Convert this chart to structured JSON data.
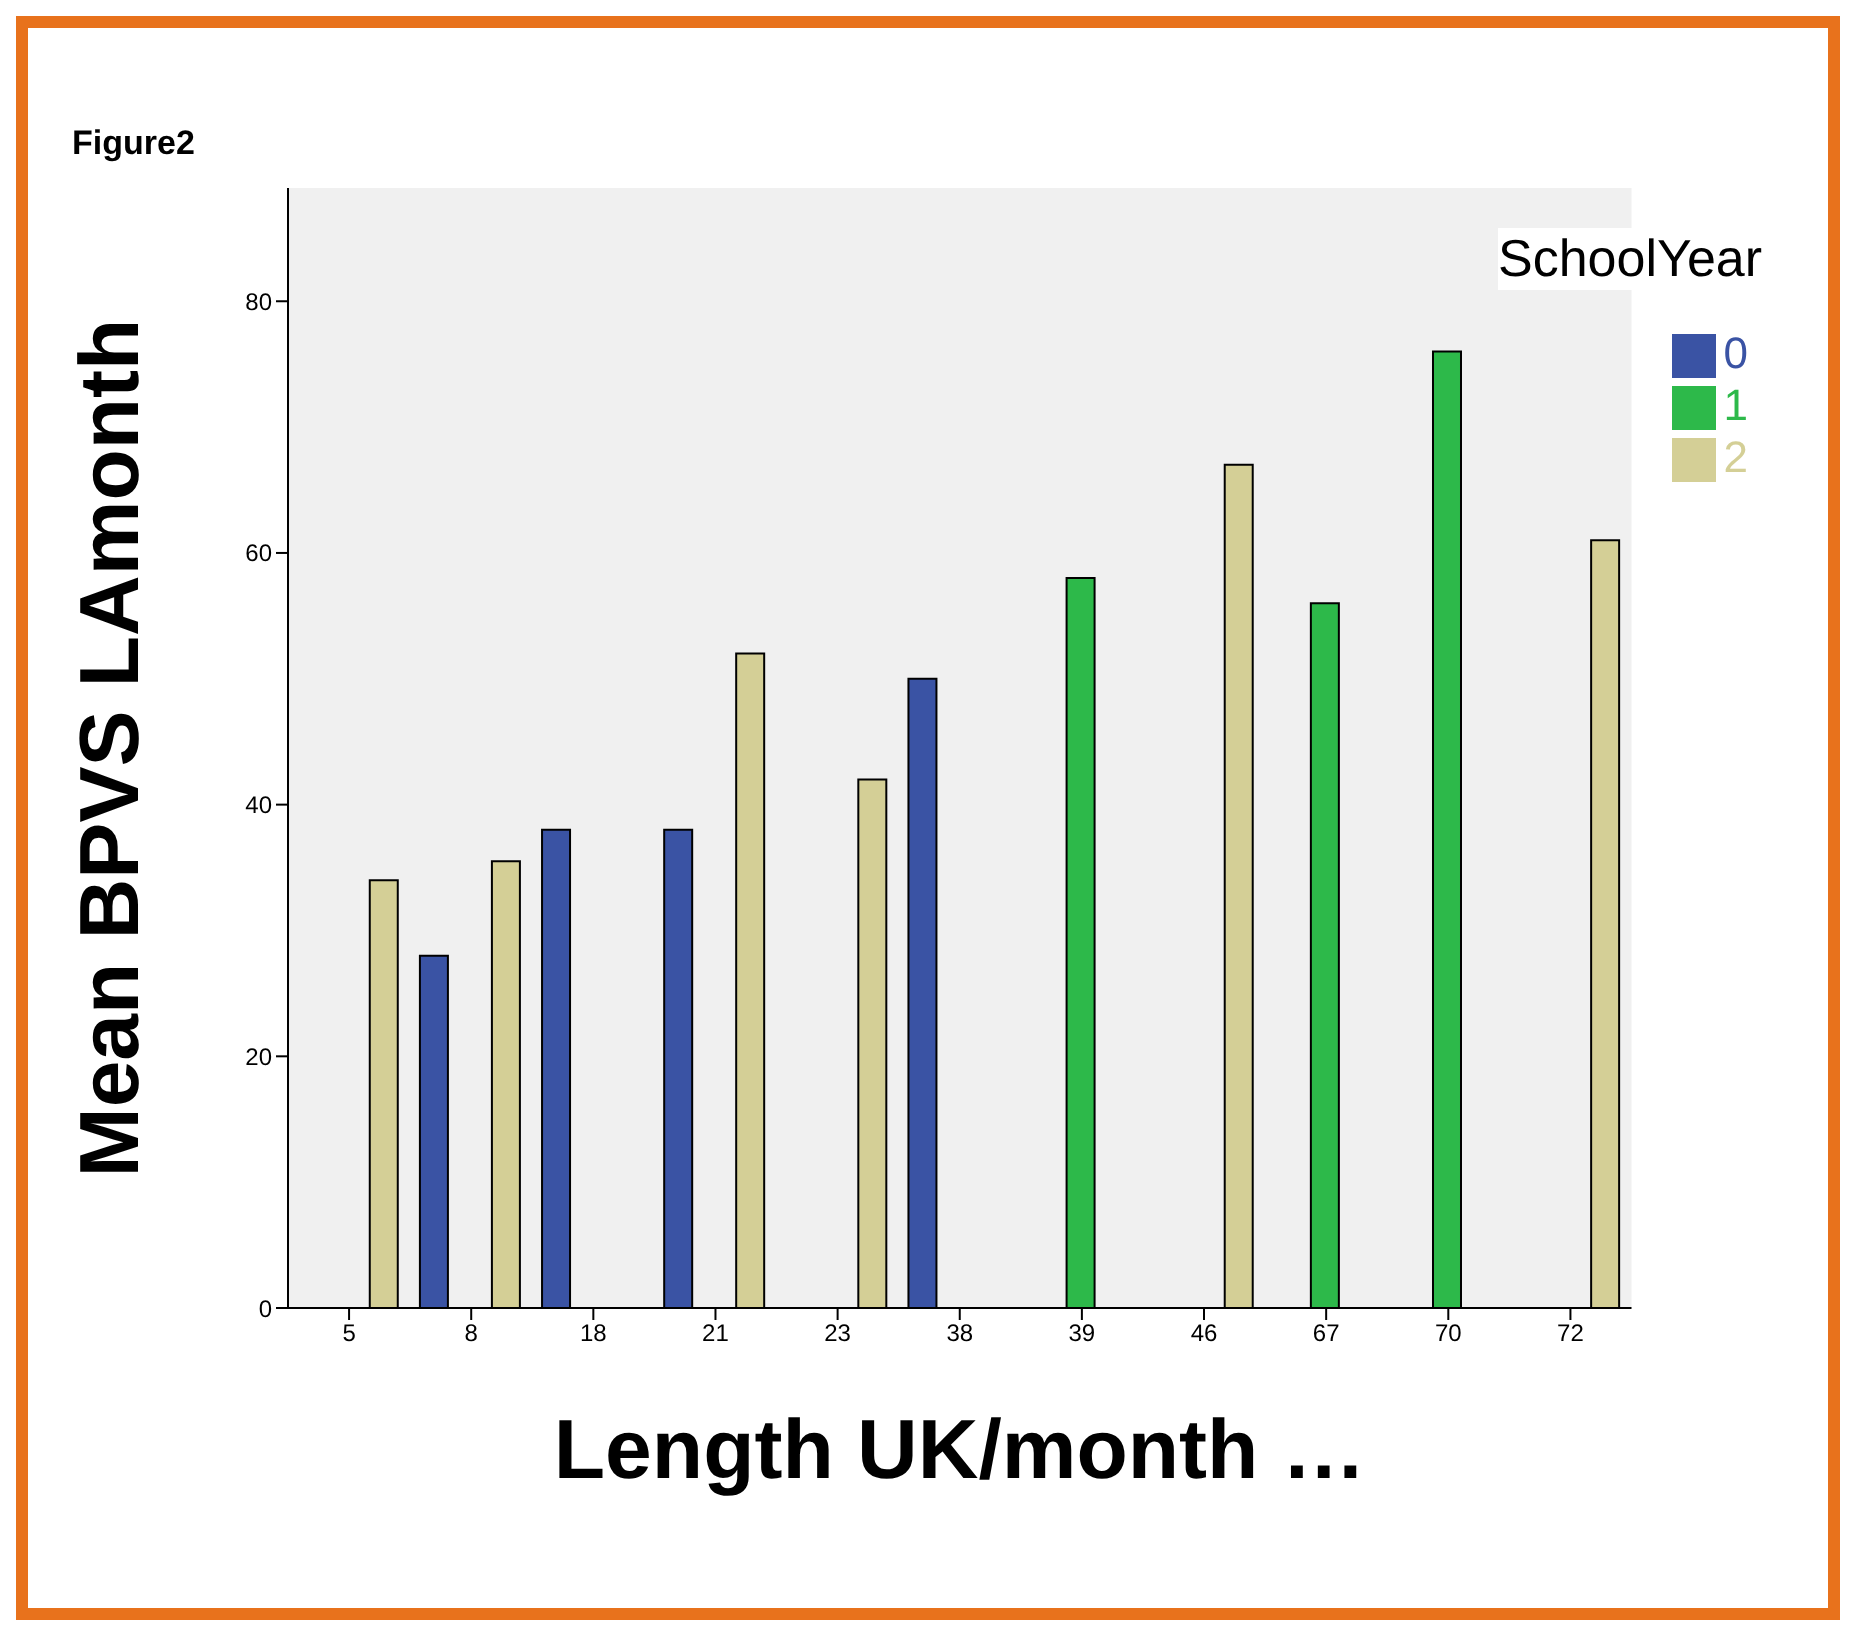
{
  "chart_data": {
    "type": "bar",
    "title": "Figure2",
    "xlabel": "Length UK/month …",
    "ylabel": "Mean BPVS LAmonth",
    "legend_title": "SchoolYear",
    "categories": [
      "5",
      "8",
      "18",
      "21",
      "23",
      "38",
      "39",
      "46",
      "67",
      "70",
      "72"
    ],
    "series": [
      {
        "name": "0",
        "color": "#3a53a4",
        "values": [
          null,
          28,
          38,
          38,
          null,
          50,
          null,
          null,
          null,
          null,
          null
        ]
      },
      {
        "name": "1",
        "color": "#2db94a",
        "values": [
          null,
          null,
          null,
          null,
          null,
          null,
          58,
          null,
          56,
          76,
          null
        ]
      },
      {
        "name": "2",
        "color": "#d4cf96",
        "values": [
          34,
          35.5,
          null,
          52,
          42,
          null,
          null,
          67,
          null,
          null,
          61
        ]
      }
    ],
    "ylim": [
      0,
      89
    ],
    "yticks": [
      0,
      20,
      40,
      60,
      80
    ],
    "grid": false,
    "legend": "top right"
  }
}
